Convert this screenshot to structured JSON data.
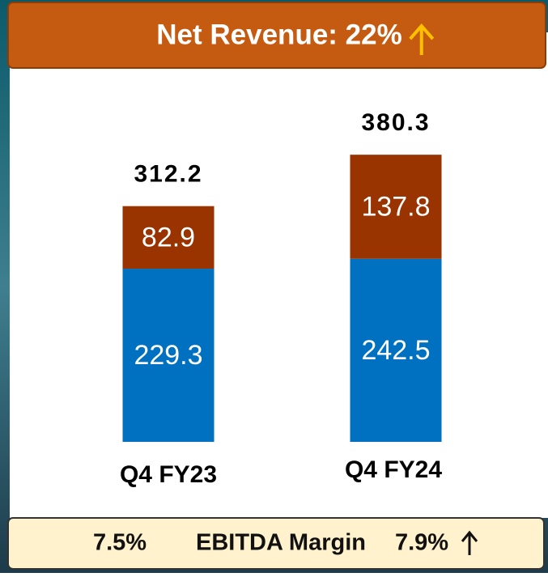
{
  "chart_data": {
    "type": "stacked_bar",
    "title": "Net Revenue: 22%",
    "categories": [
      "Q4 FY23",
      "Q4 FY24"
    ],
    "series": [
      {
        "color": "#0070c0",
        "values": [
          229.3,
          242.5
        ]
      },
      {
        "color": "#993300",
        "values": [
          82.9,
          137.8
        ]
      }
    ],
    "totals": [
      312.2,
      380.3
    ]
  },
  "footer": {
    "left": "7.5%",
    "label": "EBITDA Margin",
    "right": "7.9%"
  }
}
